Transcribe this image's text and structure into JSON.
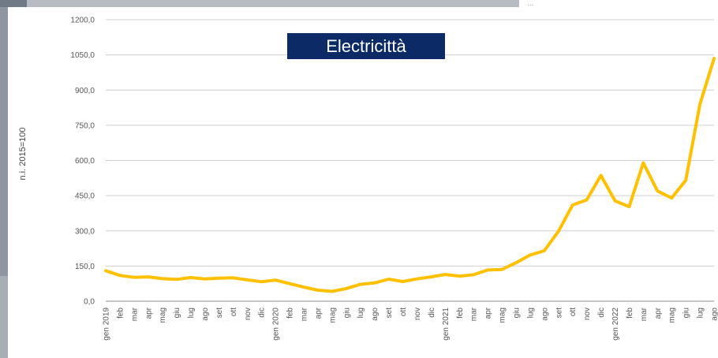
{
  "chart_data": {
    "type": "line",
    "title": "Electricittà",
    "xlabel": "",
    "ylabel": "n.i. 2015=100",
    "ylim": [
      0,
      1200
    ],
    "yticks": [
      "0,0",
      "150,0",
      "300,0",
      "450,0",
      "600,0",
      "750,0",
      "900,0",
      "1050,0",
      "1200,0"
    ],
    "grid": "horizontal",
    "line_color": "#FFC000",
    "categories": [
      "gen 2019",
      "feb",
      "mar",
      "apr",
      "mag",
      "giu",
      "lug",
      "ago",
      "set",
      "ott",
      "nov",
      "dic",
      "gen 2020",
      "feb",
      "mar",
      "apr",
      "mag",
      "giu",
      "lug",
      "ago",
      "set",
      "ott",
      "nov",
      "dic",
      "gen 2021",
      "feb",
      "mar",
      "apr",
      "mag",
      "giu",
      "lug",
      "ago",
      "set",
      "ott",
      "nov",
      "dic",
      "gen 2022",
      "feb",
      "mar",
      "apr",
      "mag",
      "giu",
      "lug",
      "ago"
    ],
    "series": [
      {
        "values": [
          130,
          110,
          102,
          104,
          96,
          93,
          101,
          95,
          98,
          100,
          91,
          83,
          90,
          75,
          60,
          47,
          42,
          54,
          72,
          78,
          94,
          84,
          95,
          104,
          114,
          107,
          113,
          133,
          135,
          164,
          197,
          215,
          298,
          410,
          432,
          536,
          428,
          403,
          590,
          470,
          440,
          515,
          840,
          1035
        ]
      }
    ]
  },
  "background": {
    "corner_text": "..."
  }
}
